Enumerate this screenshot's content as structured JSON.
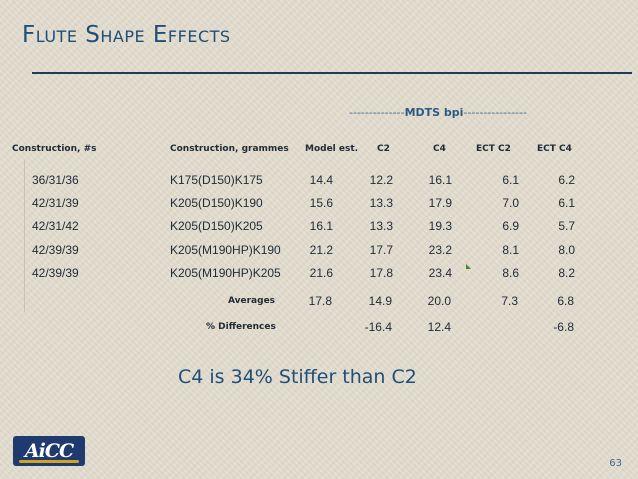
{
  "slide": {
    "title": "Flute Shape Effects",
    "page_number": "63",
    "callout": "C4 is 34% Stiffer than C2",
    "logo_text": "AiCC"
  },
  "table": {
    "group_header": "MDTS bpi",
    "group_dashes_left": "--------------",
    "group_dashes_right": "----------------",
    "headers": {
      "construction": "Construction, #s",
      "grammes": "Construction, grammes",
      "model": "Model est.",
      "c2": "C2",
      "c4": "C4",
      "ectc2": "ECT C2",
      "ectc4": "ECT C4"
    },
    "rows": [
      {
        "construction": "36/31/36",
        "grammes": "K175(D150)K175",
        "model": "14.4",
        "c2": "12.2",
        "c4": "16.1",
        "ectc2": "6.1",
        "ectc4": "6.2"
      },
      {
        "construction": "42/31/39",
        "grammes": "K205(D150)K190",
        "model": "15.6",
        "c2": "13.3",
        "c4": "17.9",
        "ectc2": "7.0",
        "ectc4": "6.1"
      },
      {
        "construction": "42/31/42",
        "grammes": "K205(D150)K205",
        "model": "16.1",
        "c2": "13.3",
        "c4": "19.3",
        "ectc2": "6.9",
        "ectc4": "5.7"
      },
      {
        "construction": "42/39/39",
        "grammes": "K205(M190HP)K190",
        "model": "21.2",
        "c2": "17.7",
        "c4": "23.2",
        "ectc2": "8.1",
        "ectc4": "8.0"
      },
      {
        "construction": "42/39/39",
        "grammes": "K205(M190HP)K205",
        "model": "21.6",
        "c2": "17.8",
        "c4": "23.4",
        "ectc2": "8.6",
        "ectc4": "8.2"
      }
    ],
    "averages": {
      "label": "Averages",
      "model": "17.8",
      "c2": "14.9",
      "c4": "20.0",
      "ectc2": "7.3",
      "ectc4": "6.8"
    },
    "differences": {
      "label": "% Differences",
      "c2": "-16.4",
      "c4": "12.4",
      "ectc4": "-6.8"
    }
  },
  "colors": {
    "title": "#1f4e79",
    "background": "#e3ddcf",
    "header_accent": "#2f5a84"
  }
}
